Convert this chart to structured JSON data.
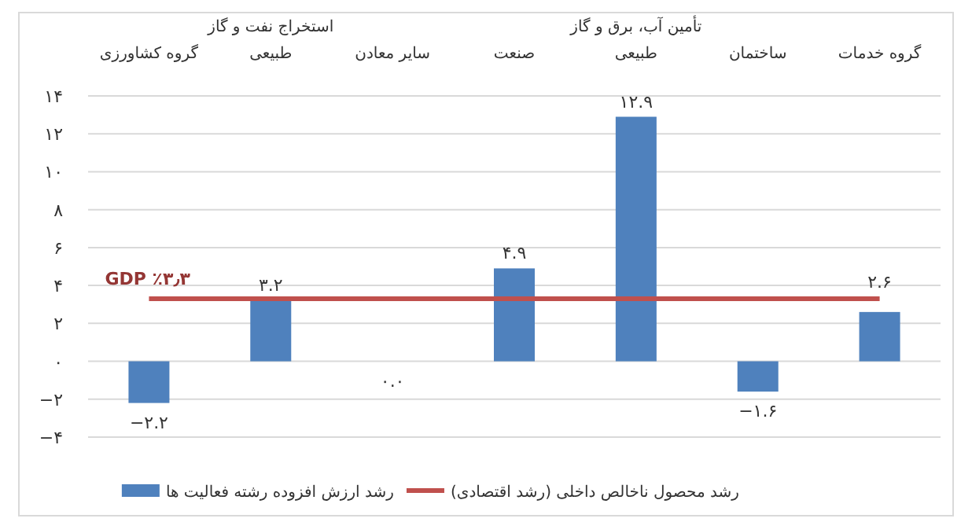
{
  "chart_data": {
    "type": "bar",
    "categories": [
      "گروه کشاورزی",
      "استخراج نفت و گاز\nطبیعی",
      "سایر معادن",
      "صنعت",
      "تأمین آب، برق و گاز\nطبیعی",
      "ساختمان",
      "گروه خدمات"
    ],
    "series": [
      {
        "name": "رشد ارزش افزوده رشته فعالیت ها",
        "color": "#4f81bd",
        "values": [
          -2.2,
          3.2,
          0.0,
          4.9,
          12.9,
          -1.6,
          2.6
        ],
        "value_labels": [
          "−۲.۲",
          "۳.۲",
          "۰.۰",
          "۴.۹",
          "۱۲.۹",
          "−۱.۶",
          "۲.۶"
        ]
      },
      {
        "name": "رشد محصول ناخالص داخلی (رشد اقتصادی)",
        "type": "line",
        "color": "#c0504d",
        "values": [
          3.3,
          3.3,
          3.3,
          3.3,
          3.3,
          3.3,
          3.3
        ]
      }
    ],
    "annotations": [
      {
        "text": "GDP ٪۳٫۳",
        "x": "گروه کشاورزی",
        "y": 3.3
      }
    ],
    "ylim": [
      -4,
      14
    ],
    "yticks": [
      {
        "value": -4,
        "label": "−۴"
      },
      {
        "value": -2,
        "label": "−۲"
      },
      {
        "value": 0,
        "label": "۰"
      },
      {
        "value": 2,
        "label": "۲"
      },
      {
        "value": 4,
        "label": "۴"
      },
      {
        "value": 6,
        "label": "۶"
      },
      {
        "value": 8,
        "label": "۸"
      },
      {
        "value": 10,
        "label": "۱۰"
      },
      {
        "value": 12,
        "label": "۱۲"
      },
      {
        "value": 14,
        "label": "۱۴"
      }
    ],
    "grid": "y",
    "legend": "bottom"
  }
}
